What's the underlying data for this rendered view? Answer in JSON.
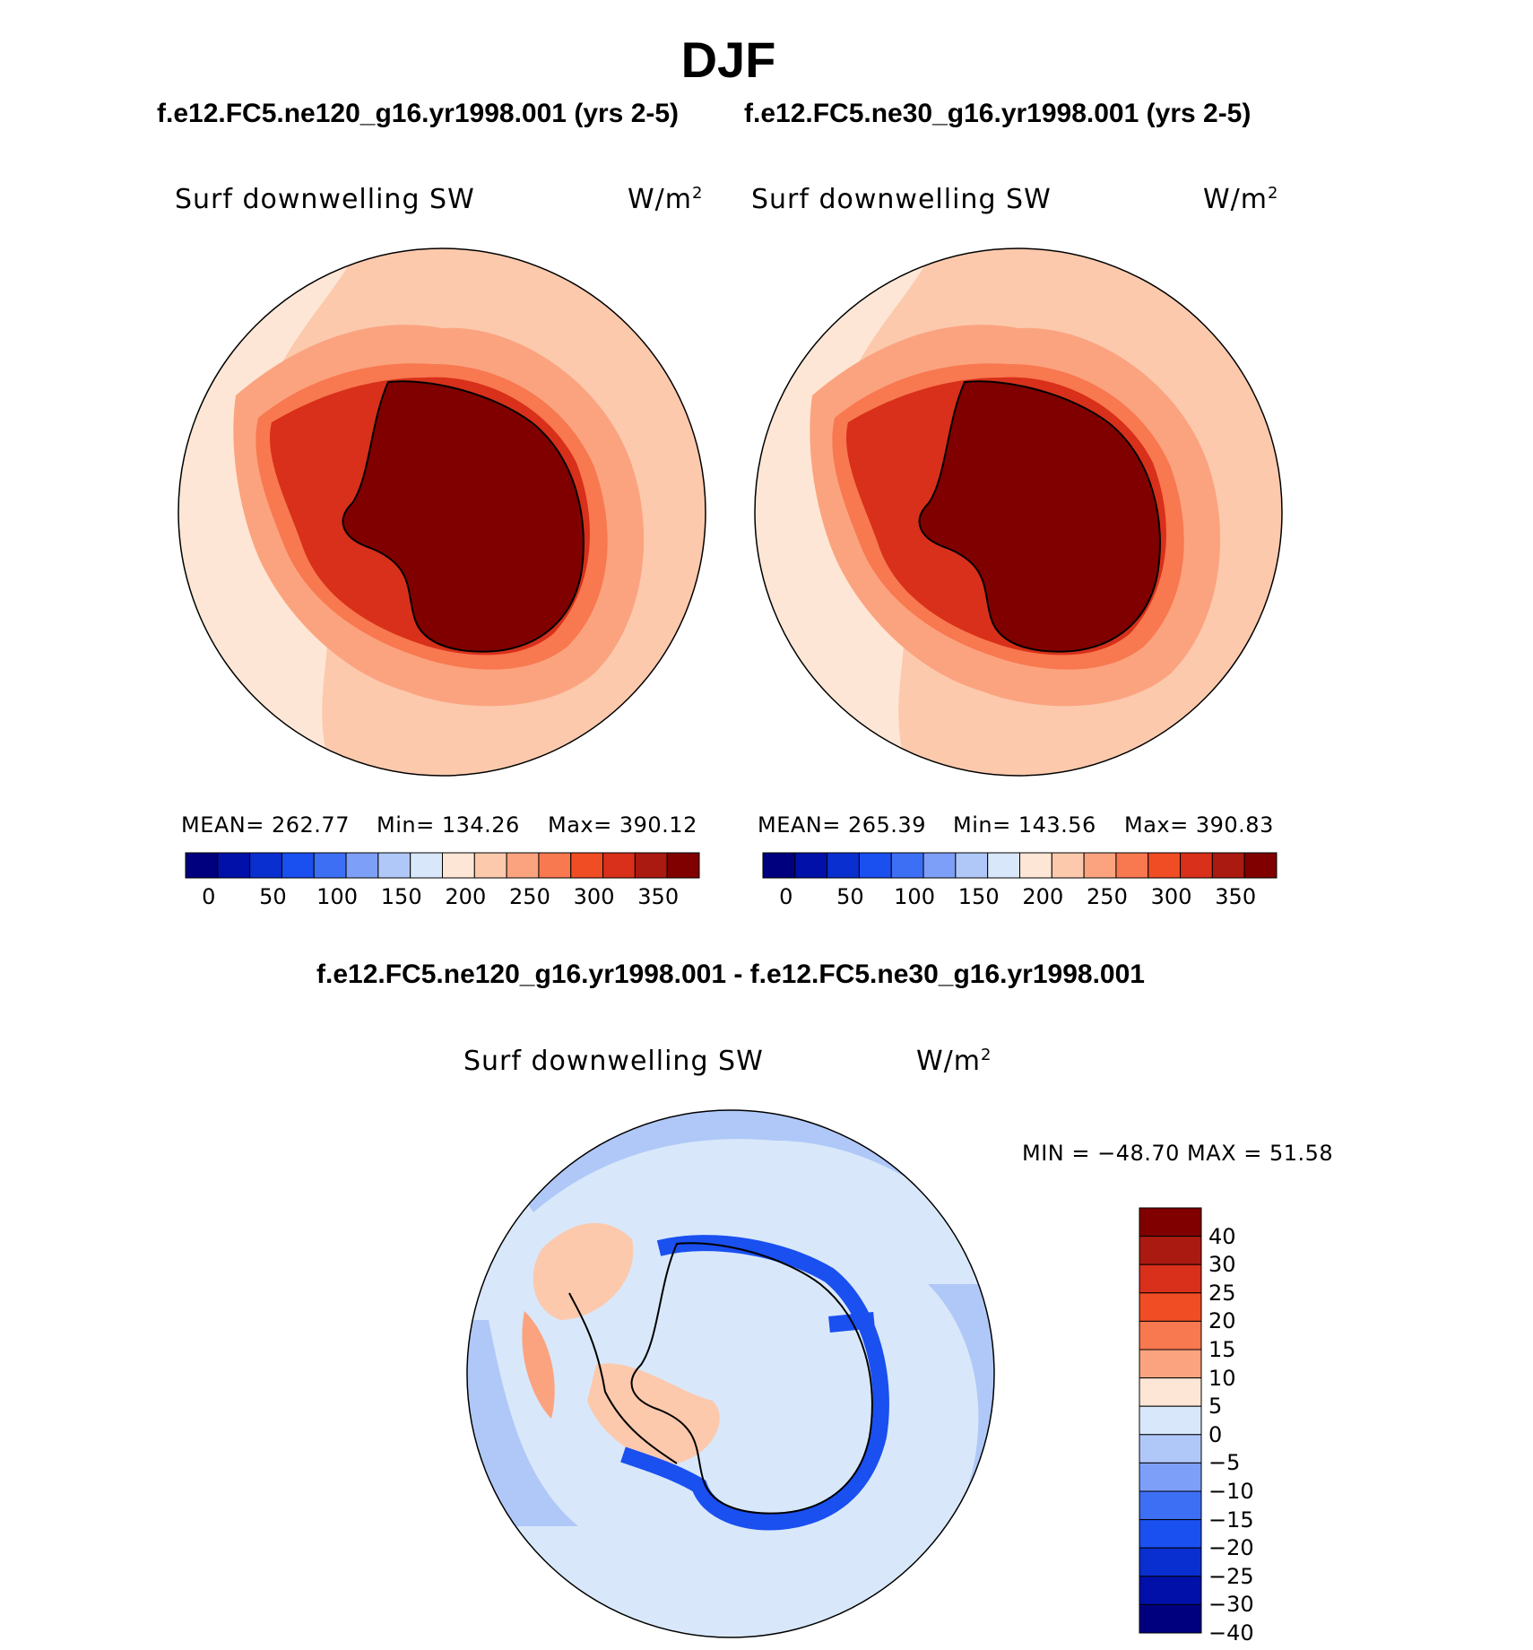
{
  "title": "DJF",
  "top_panels": [
    {
      "case_title": "f.e12.FC5.ne120_g16.yr1998.001 (yrs 2-5)",
      "variable": "Surf  downwelling  SW",
      "units": "W/m",
      "units_sup": "2",
      "stats": {
        "mean": "MEAN=  262.77",
        "min": "Min=  134.26",
        "max": "Max=  390.12"
      }
    },
    {
      "case_title": "f.e12.FC5.ne30_g16.yr1998.001 (yrs 2-5)",
      "variable": "Surf  downwelling  SW",
      "units": "W/m",
      "units_sup": "2",
      "stats": {
        "mean": "MEAN=  265.39",
        "min": "Min=  143.56",
        "max": "Max=  390.83"
      }
    }
  ],
  "abs_colorbar": {
    "colors": [
      "#00007f",
      "#0010a8",
      "#0a2fd0",
      "#1a4ff0",
      "#3d6ff5",
      "#7d9ff7",
      "#b0c8f8",
      "#d8e8fa",
      "#fde6d5",
      "#fcc9ad",
      "#fba37f",
      "#f8784f",
      "#f04d24",
      "#d8301a",
      "#aa1a10",
      "#800000"
    ],
    "ticks": [
      "0",
      "50",
      "100",
      "150",
      "200",
      "250",
      "300",
      "350"
    ]
  },
  "diff_panel": {
    "title": "f.e12.FC5.ne120_g16.yr1998.001 - f.e12.FC5.ne30_g16.yr1998.001",
    "variable": "Surf  downwelling  SW",
    "units": "W/m",
    "units_sup": "2",
    "minmax": "MIN  =  −48.70  MAX  =    51.58"
  },
  "diff_colorbar": {
    "colors": [
      "#800000",
      "#aa1a10",
      "#d8301a",
      "#f04d24",
      "#f8784f",
      "#fba37f",
      "#fde6d5",
      "#d8e8fa",
      "#b0c8f8",
      "#7d9ff7",
      "#3d6ff5",
      "#1a4ff0",
      "#0a2fd0",
      "#0010a8",
      "#00007f"
    ],
    "ticks": [
      "40",
      "30",
      "25",
      "20",
      "15",
      "10",
      "5",
      "0",
      "−5",
      "−10",
      "−15",
      "−20",
      "−25",
      "−30",
      "−40"
    ]
  }
}
